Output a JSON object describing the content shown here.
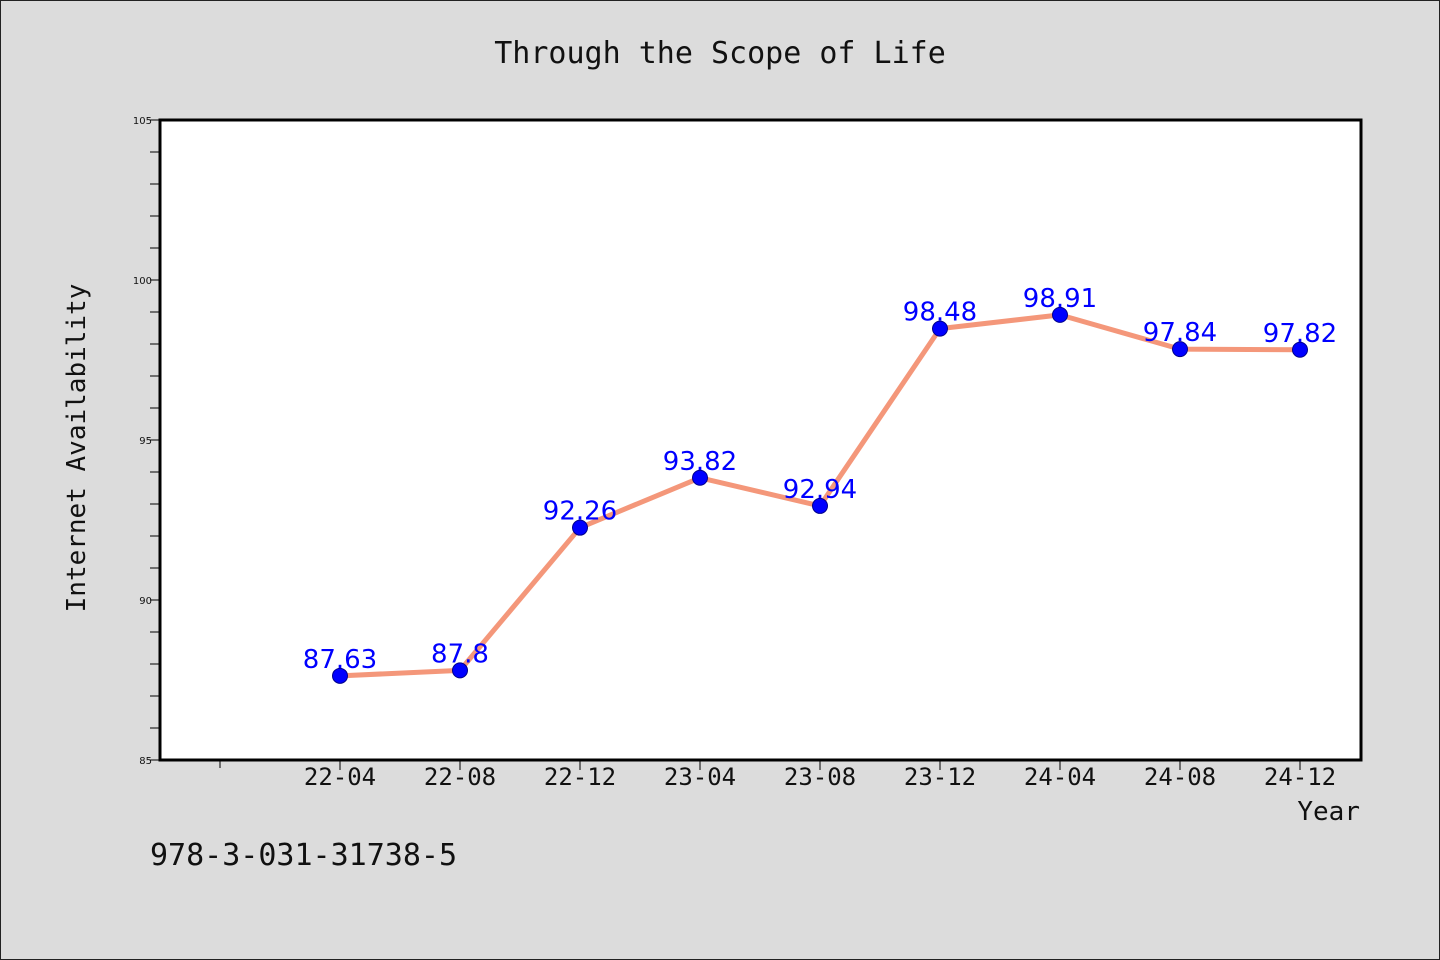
{
  "chart_data": {
    "type": "line",
    "title": "Through the Scope of Life",
    "xlabel": "Year",
    "ylabel": "Internet Availability",
    "categories": [
      "22-04",
      "22-08",
      "22-12",
      "23-04",
      "23-08",
      "23-12",
      "24-04",
      "24-08",
      "24-12"
    ],
    "series": [
      {
        "values": [
          87.63,
          87.8,
          92.26,
          93.82,
          92.94,
          98.48,
          98.91,
          97.84,
          97.82
        ],
        "labels": [
          "87.63",
          "87.8",
          "92.26",
          "93.82",
          "92.94",
          "98.48",
          "98.91",
          "97.84",
          "97.82"
        ]
      }
    ],
    "ylim": [
      85,
      105
    ],
    "yticks": [
      85,
      90,
      95,
      100,
      105
    ],
    "ytick_labels": [
      "85",
      "90",
      "95",
      "100",
      "105"
    ],
    "grid": false,
    "colors": {
      "line": "#f4977a",
      "marker": "#0000ff",
      "data_label": "#0000ff",
      "background": "#dcdcdc",
      "plot_bg": "#ffffff"
    }
  },
  "footer": {
    "identifier": "978-3-031-31738-5"
  }
}
